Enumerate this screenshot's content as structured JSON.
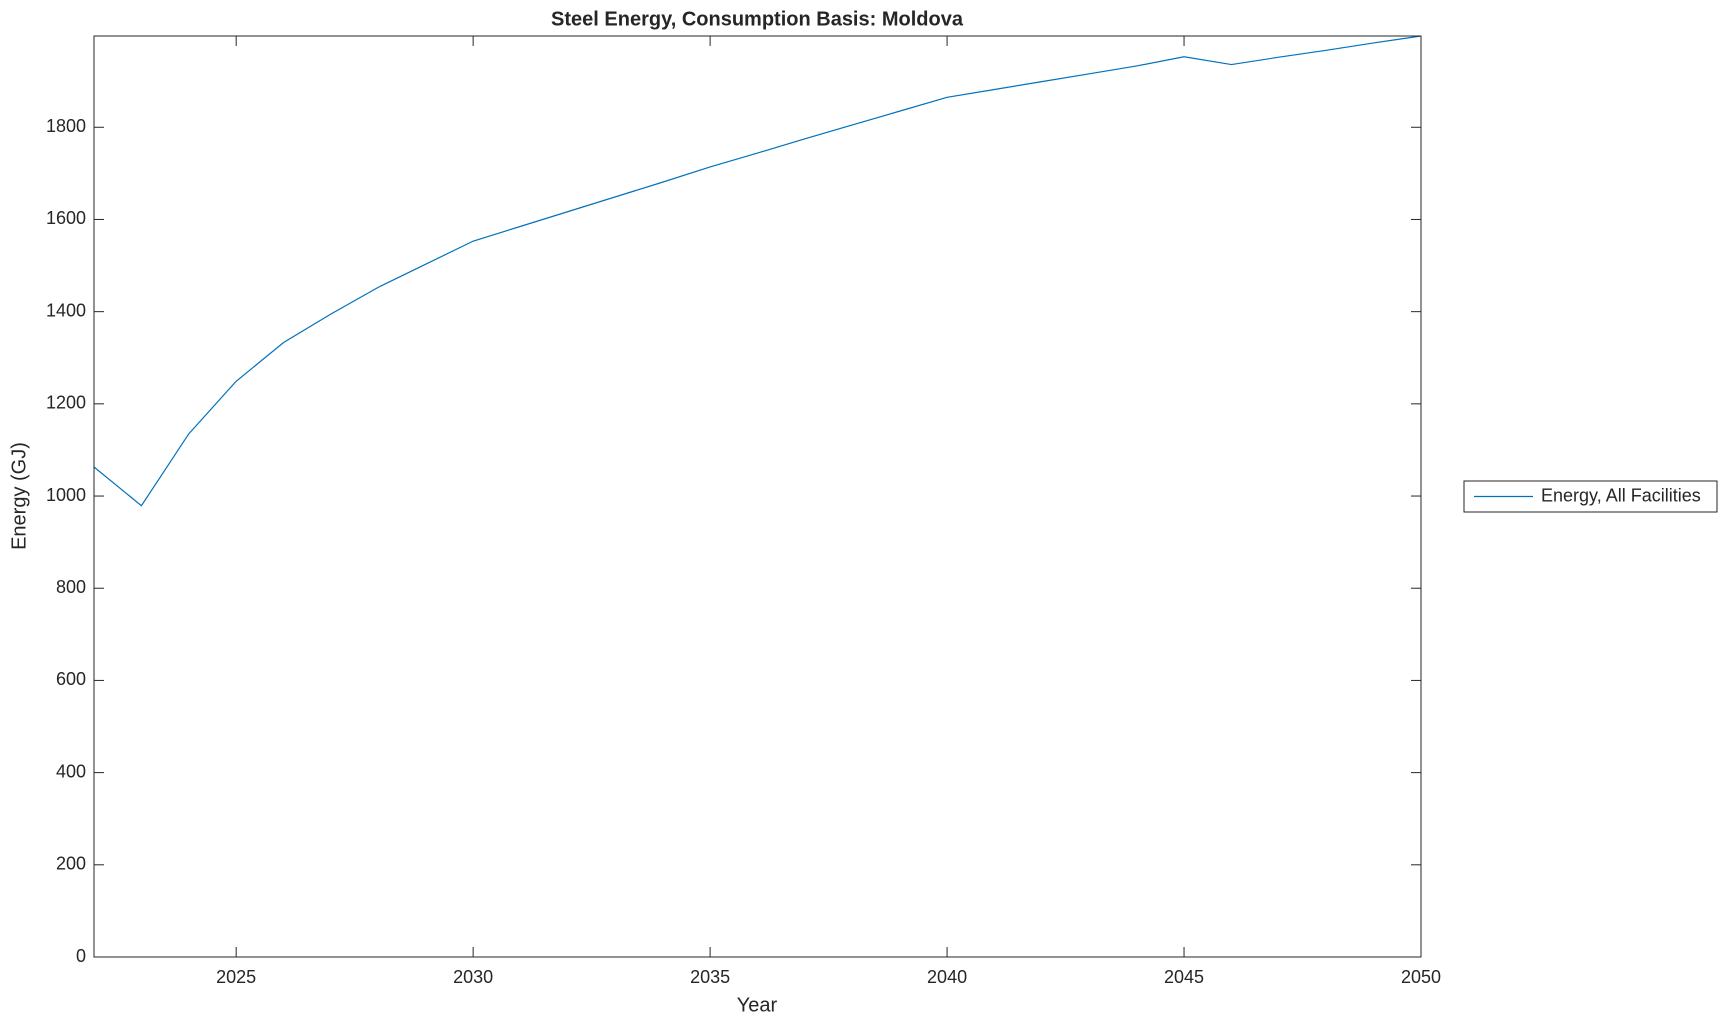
{
  "chart_data": {
    "type": "line",
    "title": "Steel Energy, Consumption Basis: Moldova",
    "xlabel": "Year",
    "ylabel": "Energy (GJ)",
    "x": [
      2022,
      2023,
      2024,
      2025,
      2026,
      2027,
      2028,
      2029,
      2030,
      2031,
      2032,
      2033,
      2034,
      2035,
      2036,
      2037,
      2038,
      2039,
      2040,
      2041,
      2042,
      2043,
      2044,
      2045,
      2046,
      2047,
      2048,
      2049,
      2050
    ],
    "series": [
      {
        "name": "Energy, All Facilities",
        "color": "#0072bd",
        "values": [
          1063,
          979,
          1135,
          1249,
          1333,
          1395,
          1453,
          1503,
          1553,
          1585,
          1617,
          1649,
          1681,
          1714,
          1744,
          1775,
          1805,
          1835,
          1865,
          1882,
          1899,
          1916,
          1933,
          1953,
          1936,
          1952,
          1967,
          1983,
          1998
        ]
      }
    ],
    "xlim": [
      2022,
      2050
    ],
    "xticks": [
      2025,
      2030,
      2035,
      2040,
      2045,
      2050
    ],
    "ylim": [
      0,
      1998
    ],
    "yticks": [
      0,
      200,
      400,
      600,
      800,
      1000,
      1200,
      1400,
      1600,
      1800
    ],
    "grid": false,
    "legend": "outside-right"
  }
}
